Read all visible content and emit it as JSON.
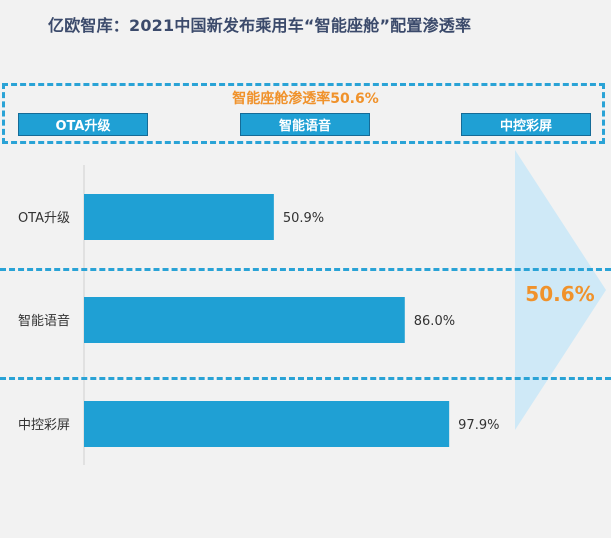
{
  "chart_data": {
    "type": "bar",
    "orientation": "horizontal",
    "title": "亿欧智库：2021中国新发布乘用车“智能座舱”配置渗透率",
    "headline": "智能座舱渗透率50.6%",
    "categories": [
      "OTA升级",
      "智能语音",
      "中控彩屏"
    ],
    "values": [
      50.9,
      86.0,
      97.9
    ],
    "value_labels": [
      "50.9%",
      "86.0%",
      "97.9%"
    ],
    "xlim": [
      0,
      100
    ],
    "summary_value": "50.6%",
    "bar_color": "#1fa0d4",
    "accent_color": "#f0922b"
  },
  "tags": [
    "OTA升级",
    "智能语音",
    "中控彩屏"
  ]
}
